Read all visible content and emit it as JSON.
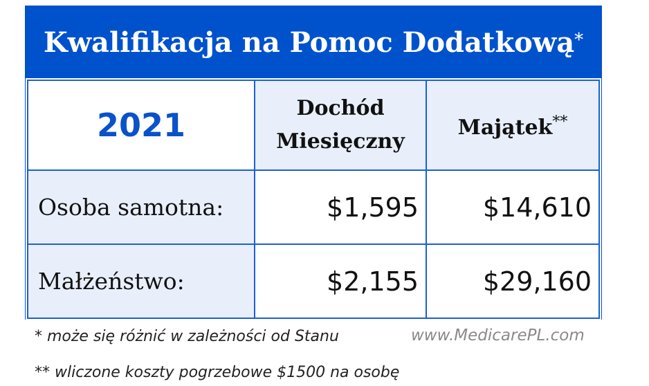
{
  "title": "Kwalifikacja na Pomoc Dodatkową",
  "title_mark": "*",
  "table": {
    "year": "2021",
    "headers": [
      {
        "line1": "Dochód",
        "line2": "Miesięczny"
      },
      {
        "label": "Majątek",
        "mark": "**"
      }
    ],
    "rows": [
      {
        "label": "Osoba samotna:",
        "income": "$1,595",
        "assets": "$14,610"
      },
      {
        "label": "Małżeństwo:",
        "income": "$2,155",
        "assets": "$29,160"
      }
    ]
  },
  "footnotes": [
    "* może się różnić w zależności od Stanu",
    "** wliczone koszty pogrzebowe $1500 na osobę"
  ],
  "website": "www.MedicarePL.com",
  "colors": {
    "brand_blue": "#0052cc",
    "light_cell": "#e8effb"
  }
}
